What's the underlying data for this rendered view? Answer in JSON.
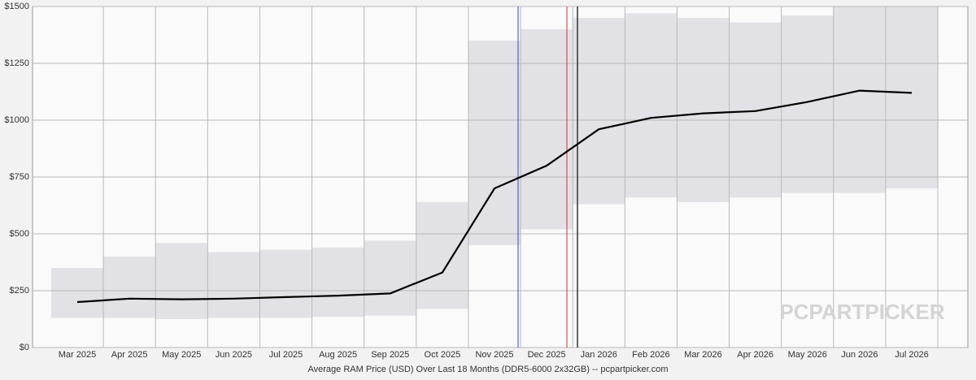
{
  "chart_data": {
    "type": "line",
    "x_title": "Average RAM Price (USD) Over Last 18 Months (DDR5-6000 2x32GB) -- pcpartpicker.com",
    "watermark": "PCPARTPICKER",
    "categories": [
      "Mar 2025",
      "Apr 2025",
      "May 2025",
      "Jun 2025",
      "Jul 2025",
      "Aug 2025",
      "Sep 2025",
      "Oct 2025",
      "Nov 2025",
      "Dec 2025",
      "Jan 2026",
      "Feb 2026",
      "Mar 2026",
      "Apr 2026",
      "May 2026",
      "Jun 2026",
      "Jul 2026"
    ],
    "series": [
      {
        "color": "#000000",
        "values": [
          200,
          215,
          212,
          215,
          222,
          228,
          238,
          330,
          700,
          800,
          960,
          1010,
          1030,
          1040,
          1080,
          1130,
          1120
        ]
      }
    ],
    "range_low": [
      130,
      130,
      125,
      130,
      130,
      135,
      140,
      170,
      450,
      520,
      630,
      660,
      640,
      660,
      680,
      680,
      700
    ],
    "range_high": [
      350,
      400,
      460,
      420,
      430,
      440,
      470,
      640,
      1350,
      1400,
      1450,
      1470,
      1450,
      1430,
      1460,
      1500,
      1500
    ],
    "band_color": "#e2e2e6",
    "ylim": [
      0,
      1500
    ],
    "yticks": [
      {
        "value": 0,
        "label": "$0"
      },
      {
        "value": 250,
        "label": "$250"
      },
      {
        "value": 500,
        "label": "$500"
      },
      {
        "value": 750,
        "label": "$750"
      },
      {
        "value": 1000,
        "label": "$1000"
      },
      {
        "value": 1250,
        "label": "$1250"
      },
      {
        "value": 1500,
        "label": "$1500"
      }
    ],
    "grid": true
  }
}
